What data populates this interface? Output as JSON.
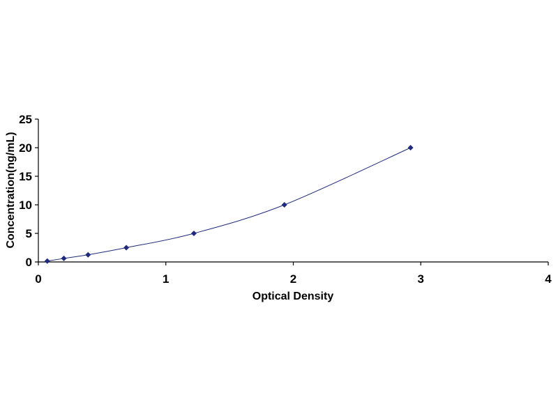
{
  "chart_data": {
    "type": "scatter",
    "title": "",
    "xlabel": "Optical Density",
    "ylabel": "Concentration(ng/mL)",
    "xlim": [
      0,
      4
    ],
    "ylim": [
      0,
      25
    ],
    "x_ticks": [
      "0",
      "1",
      "2",
      "3",
      "4"
    ],
    "y_ticks": [
      "0",
      "5",
      "10",
      "15",
      "20",
      "25"
    ],
    "grid": false,
    "legend": "none",
    "marker": "diamond",
    "trendline": "smooth curve through points",
    "series": [
      {
        "x": [
          0.07,
          0.2,
          0.39,
          0.69,
          1.22,
          1.93,
          2.92
        ],
        "y": [
          0.156,
          0.625,
          1.25,
          2.5,
          5,
          10,
          20
        ]
      }
    ],
    "colors": {
      "series": "#1f2a7a",
      "axis": "#000000"
    }
  }
}
